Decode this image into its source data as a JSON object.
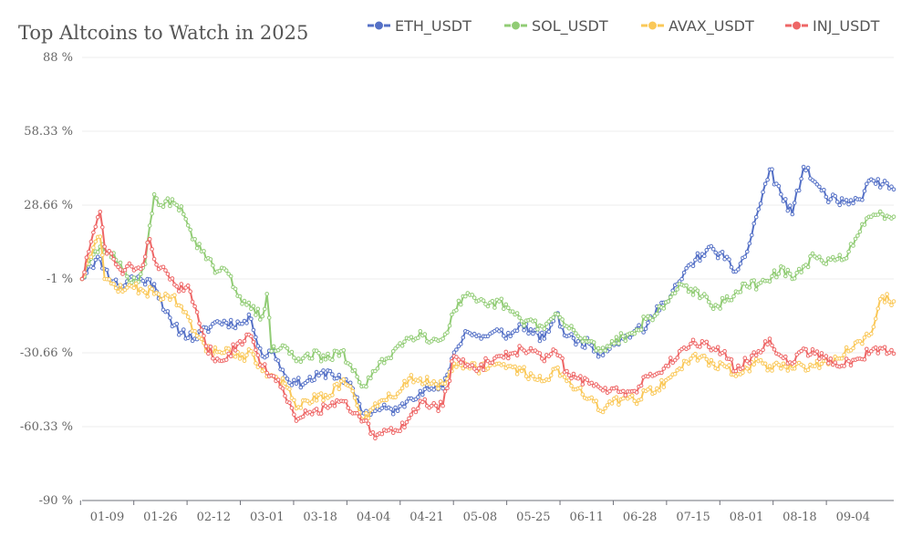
{
  "chart_data": {
    "type": "line",
    "title": "Top Altcoins to Watch in 2025",
    "xlabel": "",
    "ylabel": "",
    "y_tick_labels": [
      "88 %",
      "58.33 %",
      "28.66 %",
      "-1 %",
      "-30.66 %",
      "-60.33 %",
      "-90 %"
    ],
    "ylim": [
      -90,
      88
    ],
    "x_tick_labels": [
      "01-09",
      "01-26",
      "02-12",
      "03-01",
      "03-18",
      "04-04",
      "04-21",
      "05-08",
      "05-25",
      "06-11",
      "06-28",
      "07-15",
      "08-01",
      "08-18",
      "09-04"
    ],
    "date_range": [
      "01-01",
      "09-16"
    ],
    "legend_position": "top-right",
    "series": [
      {
        "name": "ETH_USDT",
        "color": "#5470c6",
        "keypoints": [
          [
            0,
            -1
          ],
          [
            3,
            4
          ],
          [
            8,
            7
          ],
          [
            10,
            3
          ],
          [
            14,
            -2
          ],
          [
            18,
            -4
          ],
          [
            22,
            0
          ],
          [
            26,
            -1
          ],
          [
            32,
            -3
          ],
          [
            40,
            -20
          ],
          [
            50,
            -25
          ],
          [
            60,
            -18
          ],
          [
            70,
            -19
          ],
          [
            75,
            -17
          ],
          [
            80,
            -32
          ],
          [
            85,
            -30
          ],
          [
            90,
            -40
          ],
          [
            95,
            -43
          ],
          [
            100,
            -42
          ],
          [
            110,
            -38
          ],
          [
            115,
            -42
          ],
          [
            120,
            -45
          ],
          [
            125,
            -55
          ],
          [
            130,
            -54
          ],
          [
            135,
            -53
          ],
          [
            140,
            -54
          ],
          [
            145,
            -49
          ],
          [
            150,
            -46
          ],
          [
            155,
            -45
          ],
          [
            160,
            -45
          ],
          [
            164,
            -33
          ],
          [
            170,
            -22
          ],
          [
            175,
            -24
          ],
          [
            180,
            -24
          ],
          [
            185,
            -22
          ],
          [
            190,
            -24
          ],
          [
            195,
            -19
          ],
          [
            200,
            -23
          ],
          [
            205,
            -25
          ],
          [
            210,
            -15
          ],
          [
            215,
            -24
          ],
          [
            220,
            -26
          ],
          [
            225,
            -27
          ],
          [
            230,
            -31
          ],
          [
            235,
            -27
          ],
          [
            240,
            -25
          ],
          [
            245,
            -22
          ],
          [
            250,
            -21
          ],
          [
            255,
            -12
          ],
          [
            260,
            -10
          ],
          [
            265,
            -2
          ],
          [
            270,
            5
          ],
          [
            275,
            9
          ],
          [
            280,
            11
          ],
          [
            285,
            7
          ],
          [
            290,
            2
          ],
          [
            295,
            10
          ],
          [
            300,
            27
          ],
          [
            305,
            43
          ],
          [
            310,
            33
          ],
          [
            315,
            25
          ],
          [
            320,
            44
          ],
          [
            325,
            38
          ],
          [
            330,
            32
          ],
          [
            335,
            30
          ],
          [
            340,
            29
          ],
          [
            345,
            31
          ],
          [
            350,
            39
          ],
          [
            355,
            37
          ],
          [
            360,
            35
          ]
        ]
      },
      {
        "name": "SOL_USDT",
        "color": "#91cc75",
        "keypoints": [
          [
            0,
            -1
          ],
          [
            3,
            5
          ],
          [
            8,
            12
          ],
          [
            12,
            10
          ],
          [
            16,
            5
          ],
          [
            20,
            0
          ],
          [
            24,
            -2
          ],
          [
            28,
            5
          ],
          [
            32,
            33
          ],
          [
            36,
            28
          ],
          [
            40,
            31
          ],
          [
            45,
            25
          ],
          [
            50,
            15
          ],
          [
            55,
            7
          ],
          [
            60,
            2
          ],
          [
            65,
            1
          ],
          [
            70,
            -8
          ],
          [
            75,
            -13
          ],
          [
            80,
            -16
          ],
          [
            82,
            -7
          ],
          [
            84,
            -30
          ],
          [
            90,
            -28
          ],
          [
            95,
            -34
          ],
          [
            100,
            -31
          ],
          [
            110,
            -33
          ],
          [
            115,
            -30
          ],
          [
            120,
            -38
          ],
          [
            125,
            -44
          ],
          [
            130,
            -38
          ],
          [
            135,
            -33
          ],
          [
            140,
            -28
          ],
          [
            145,
            -25
          ],
          [
            150,
            -22
          ],
          [
            155,
            -26
          ],
          [
            160,
            -25
          ],
          [
            165,
            -14
          ],
          [
            170,
            -8
          ],
          [
            175,
            -10
          ],
          [
            180,
            -12
          ],
          [
            185,
            -10
          ],
          [
            190,
            -14
          ],
          [
            195,
            -18
          ],
          [
            200,
            -18
          ],
          [
            205,
            -21
          ],
          [
            210,
            -15
          ],
          [
            215,
            -20
          ],
          [
            220,
            -24
          ],
          [
            225,
            -26
          ],
          [
            230,
            -30
          ],
          [
            235,
            -26
          ],
          [
            240,
            -24
          ],
          [
            245,
            -23
          ],
          [
            250,
            -17
          ],
          [
            255,
            -15
          ],
          [
            260,
            -10
          ],
          [
            265,
            -3
          ],
          [
            270,
            -5
          ],
          [
            275,
            -8
          ],
          [
            280,
            -13
          ],
          [
            285,
            -10
          ],
          [
            290,
            -6
          ],
          [
            295,
            -4
          ],
          [
            300,
            -3
          ],
          [
            305,
            -2
          ],
          [
            310,
            4
          ],
          [
            315,
            -1
          ],
          [
            320,
            4
          ],
          [
            325,
            8
          ],
          [
            330,
            5
          ],
          [
            335,
            7
          ],
          [
            340,
            10
          ],
          [
            345,
            18
          ],
          [
            350,
            24
          ],
          [
            355,
            25
          ],
          [
            360,
            24
          ]
        ]
      },
      {
        "name": "AVAX_USDT",
        "color": "#fac858",
        "keypoints": [
          [
            0,
            -1
          ],
          [
            3,
            8
          ],
          [
            6,
            14
          ],
          [
            8,
            16
          ],
          [
            10,
            -1
          ],
          [
            14,
            -3
          ],
          [
            18,
            -6
          ],
          [
            22,
            -4
          ],
          [
            26,
            -5
          ],
          [
            32,
            -7
          ],
          [
            40,
            -8
          ],
          [
            50,
            -22
          ],
          [
            55,
            -30
          ],
          [
            65,
            -29
          ],
          [
            70,
            -33
          ],
          [
            75,
            -30
          ],
          [
            80,
            -38
          ],
          [
            90,
            -43
          ],
          [
            95,
            -53
          ],
          [
            100,
            -50
          ],
          [
            110,
            -48
          ],
          [
            115,
            -42
          ],
          [
            120,
            -46
          ],
          [
            125,
            -58
          ],
          [
            130,
            -51
          ],
          [
            140,
            -47
          ],
          [
            145,
            -41
          ],
          [
            150,
            -41
          ],
          [
            155,
            -43
          ],
          [
            160,
            -43
          ],
          [
            165,
            -35
          ],
          [
            170,
            -35
          ],
          [
            175,
            -37
          ],
          [
            180,
            -37
          ],
          [
            185,
            -35
          ],
          [
            190,
            -36
          ],
          [
            195,
            -38
          ],
          [
            200,
            -40
          ],
          [
            205,
            -42
          ],
          [
            210,
            -37
          ],
          [
            215,
            -42
          ],
          [
            220,
            -45
          ],
          [
            225,
            -49
          ],
          [
            230,
            -54
          ],
          [
            235,
            -51
          ],
          [
            240,
            -49
          ],
          [
            245,
            -50
          ],
          [
            250,
            -46
          ],
          [
            255,
            -45
          ],
          [
            260,
            -41
          ],
          [
            265,
            -37
          ],
          [
            270,
            -33
          ],
          [
            275,
            -32
          ],
          [
            280,
            -35
          ],
          [
            285,
            -36
          ],
          [
            290,
            -40
          ],
          [
            295,
            -37
          ],
          [
            300,
            -34
          ],
          [
            305,
            -36
          ],
          [
            310,
            -37
          ],
          [
            315,
            -37
          ],
          [
            320,
            -36
          ],
          [
            325,
            -36
          ],
          [
            330,
            -34
          ],
          [
            335,
            -33
          ],
          [
            340,
            -30
          ],
          [
            345,
            -26
          ],
          [
            350,
            -23
          ],
          [
            355,
            -8
          ],
          [
            360,
            -10
          ]
        ]
      },
      {
        "name": "INJ_USDT",
        "color": "#ee6666",
        "keypoints": [
          [
            0,
            -1
          ],
          [
            3,
            10
          ],
          [
            6,
            20
          ],
          [
            8,
            26
          ],
          [
            10,
            12
          ],
          [
            14,
            7
          ],
          [
            18,
            1
          ],
          [
            22,
            4
          ],
          [
            26,
            3
          ],
          [
            30,
            15
          ],
          [
            34,
            3
          ],
          [
            38,
            1
          ],
          [
            42,
            -4
          ],
          [
            48,
            -6
          ],
          [
            50,
            -12
          ],
          [
            55,
            -28
          ],
          [
            60,
            -33
          ],
          [
            65,
            -31
          ],
          [
            70,
            -26
          ],
          [
            75,
            -24
          ],
          [
            80,
            -36
          ],
          [
            85,
            -40
          ],
          [
            90,
            -48
          ],
          [
            95,
            -58
          ],
          [
            100,
            -55
          ],
          [
            110,
            -52
          ],
          [
            115,
            -50
          ],
          [
            120,
            -55
          ],
          [
            125,
            -58
          ],
          [
            130,
            -65
          ],
          [
            135,
            -62
          ],
          [
            140,
            -62
          ],
          [
            145,
            -57
          ],
          [
            150,
            -50
          ],
          [
            155,
            -52
          ],
          [
            160,
            -52
          ],
          [
            165,
            -32
          ],
          [
            170,
            -36
          ],
          [
            175,
            -38
          ],
          [
            180,
            -34
          ],
          [
            185,
            -32
          ],
          [
            190,
            -31
          ],
          [
            195,
            -29
          ],
          [
            200,
            -30
          ],
          [
            205,
            -34
          ],
          [
            210,
            -30
          ],
          [
            215,
            -38
          ],
          [
            220,
            -41
          ],
          [
            225,
            -43
          ],
          [
            230,
            -45
          ],
          [
            235,
            -45
          ],
          [
            240,
            -46
          ],
          [
            245,
            -46
          ],
          [
            250,
            -40
          ],
          [
            255,
            -39
          ],
          [
            260,
            -36
          ],
          [
            265,
            -30
          ],
          [
            270,
            -27
          ],
          [
            275,
            -26
          ],
          [
            280,
            -29
          ],
          [
            285,
            -30
          ],
          [
            290,
            -38
          ],
          [
            295,
            -34
          ],
          [
            300,
            -30
          ],
          [
            305,
            -25
          ],
          [
            310,
            -32
          ],
          [
            315,
            -35
          ],
          [
            320,
            -29
          ],
          [
            325,
            -31
          ],
          [
            330,
            -32
          ],
          [
            335,
            -36
          ],
          [
            340,
            -34
          ],
          [
            345,
            -33
          ],
          [
            350,
            -30
          ],
          [
            355,
            -29
          ],
          [
            360,
            -31
          ]
        ]
      }
    ]
  }
}
